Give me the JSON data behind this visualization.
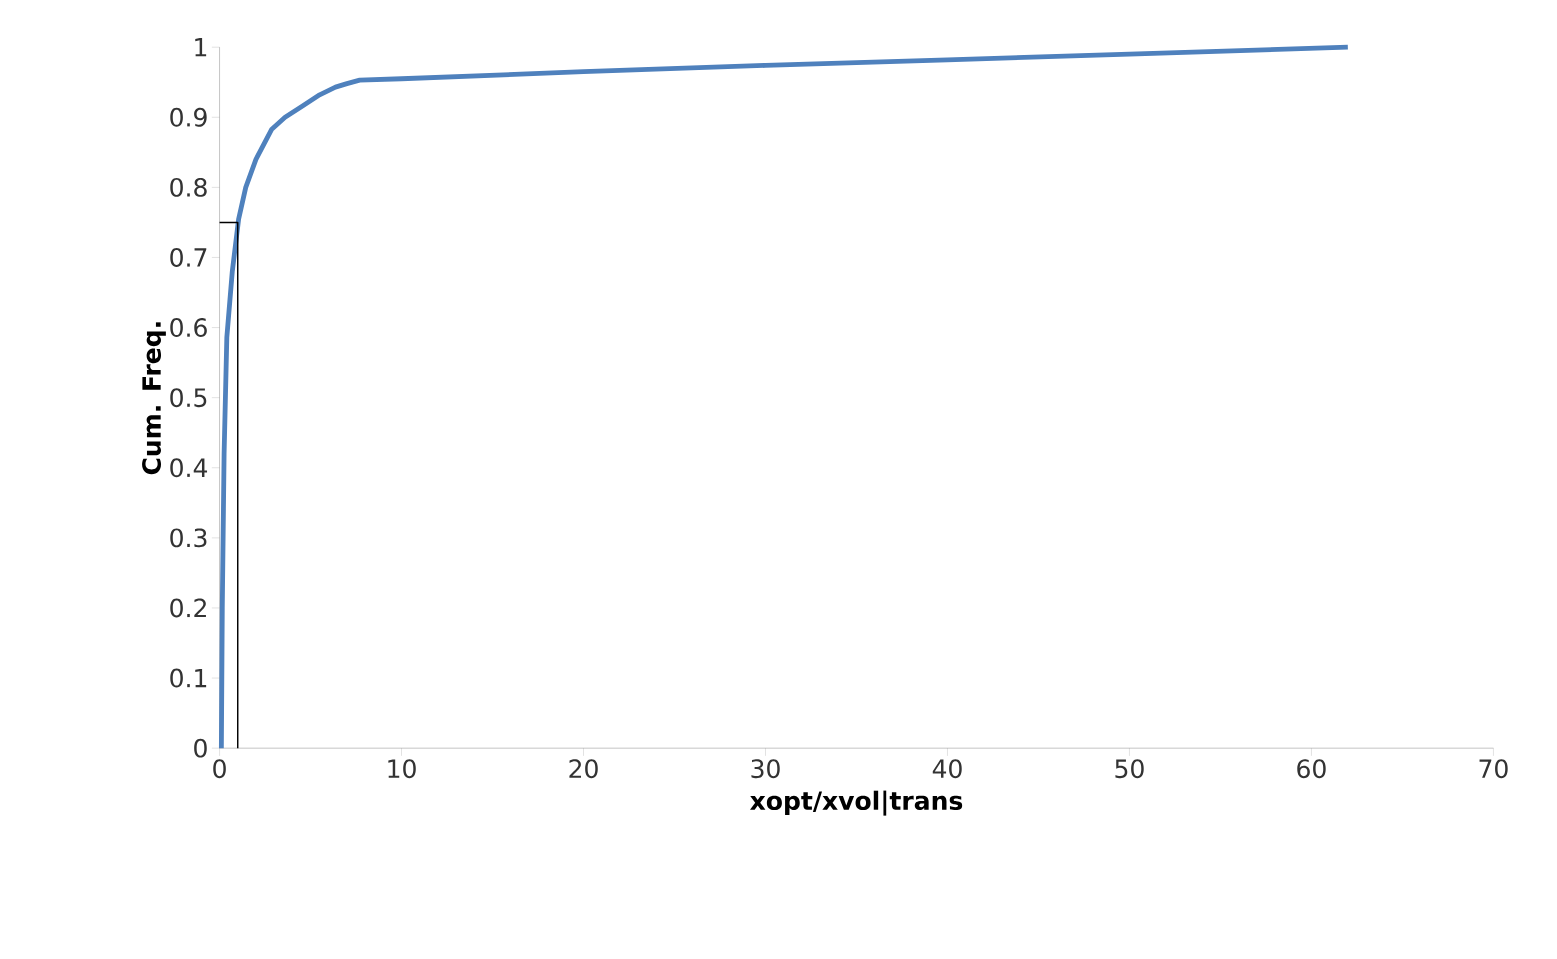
{
  "chart_data": {
    "type": "line",
    "xlabel": "xopt/xvol|trans",
    "ylabel": "Cum. Freq.",
    "xlim": [
      0,
      70
    ],
    "xticks": [
      0,
      10,
      20,
      30,
      40,
      50,
      60,
      70
    ],
    "ylim": [
      0,
      1
    ],
    "yticks": [
      0,
      0.1,
      0.2,
      0.3,
      0.4,
      0.5,
      0.6,
      0.7,
      0.8,
      0.9,
      1
    ],
    "grid": false,
    "marker": "none",
    "line_style": "solid",
    "series": [
      {
        "color": "#4f81bd",
        "x": [
          0.1,
          0.15,
          0.25,
          0.4,
          0.7,
          1.05,
          1.44,
          2.0,
          2.87,
          3.6,
          4.56,
          5.5,
          6.37,
          7.0,
          7.7,
          10,
          20,
          30,
          40,
          50,
          62
        ],
        "values": [
          0,
          0.2,
          0.42,
          0.586,
          0.68,
          0.755,
          0.8,
          0.84,
          0.883,
          0.9,
          0.916,
          0.932,
          0.943,
          0.948,
          0.953,
          0.955,
          0.965,
          0.974,
          0.982,
          0.99,
          1.0
        ]
      },
      {
        "color": "#000000",
        "x": [
          0,
          1,
          1
        ],
        "values": [
          0.75,
          0.75,
          0
        ]
      }
    ]
  }
}
